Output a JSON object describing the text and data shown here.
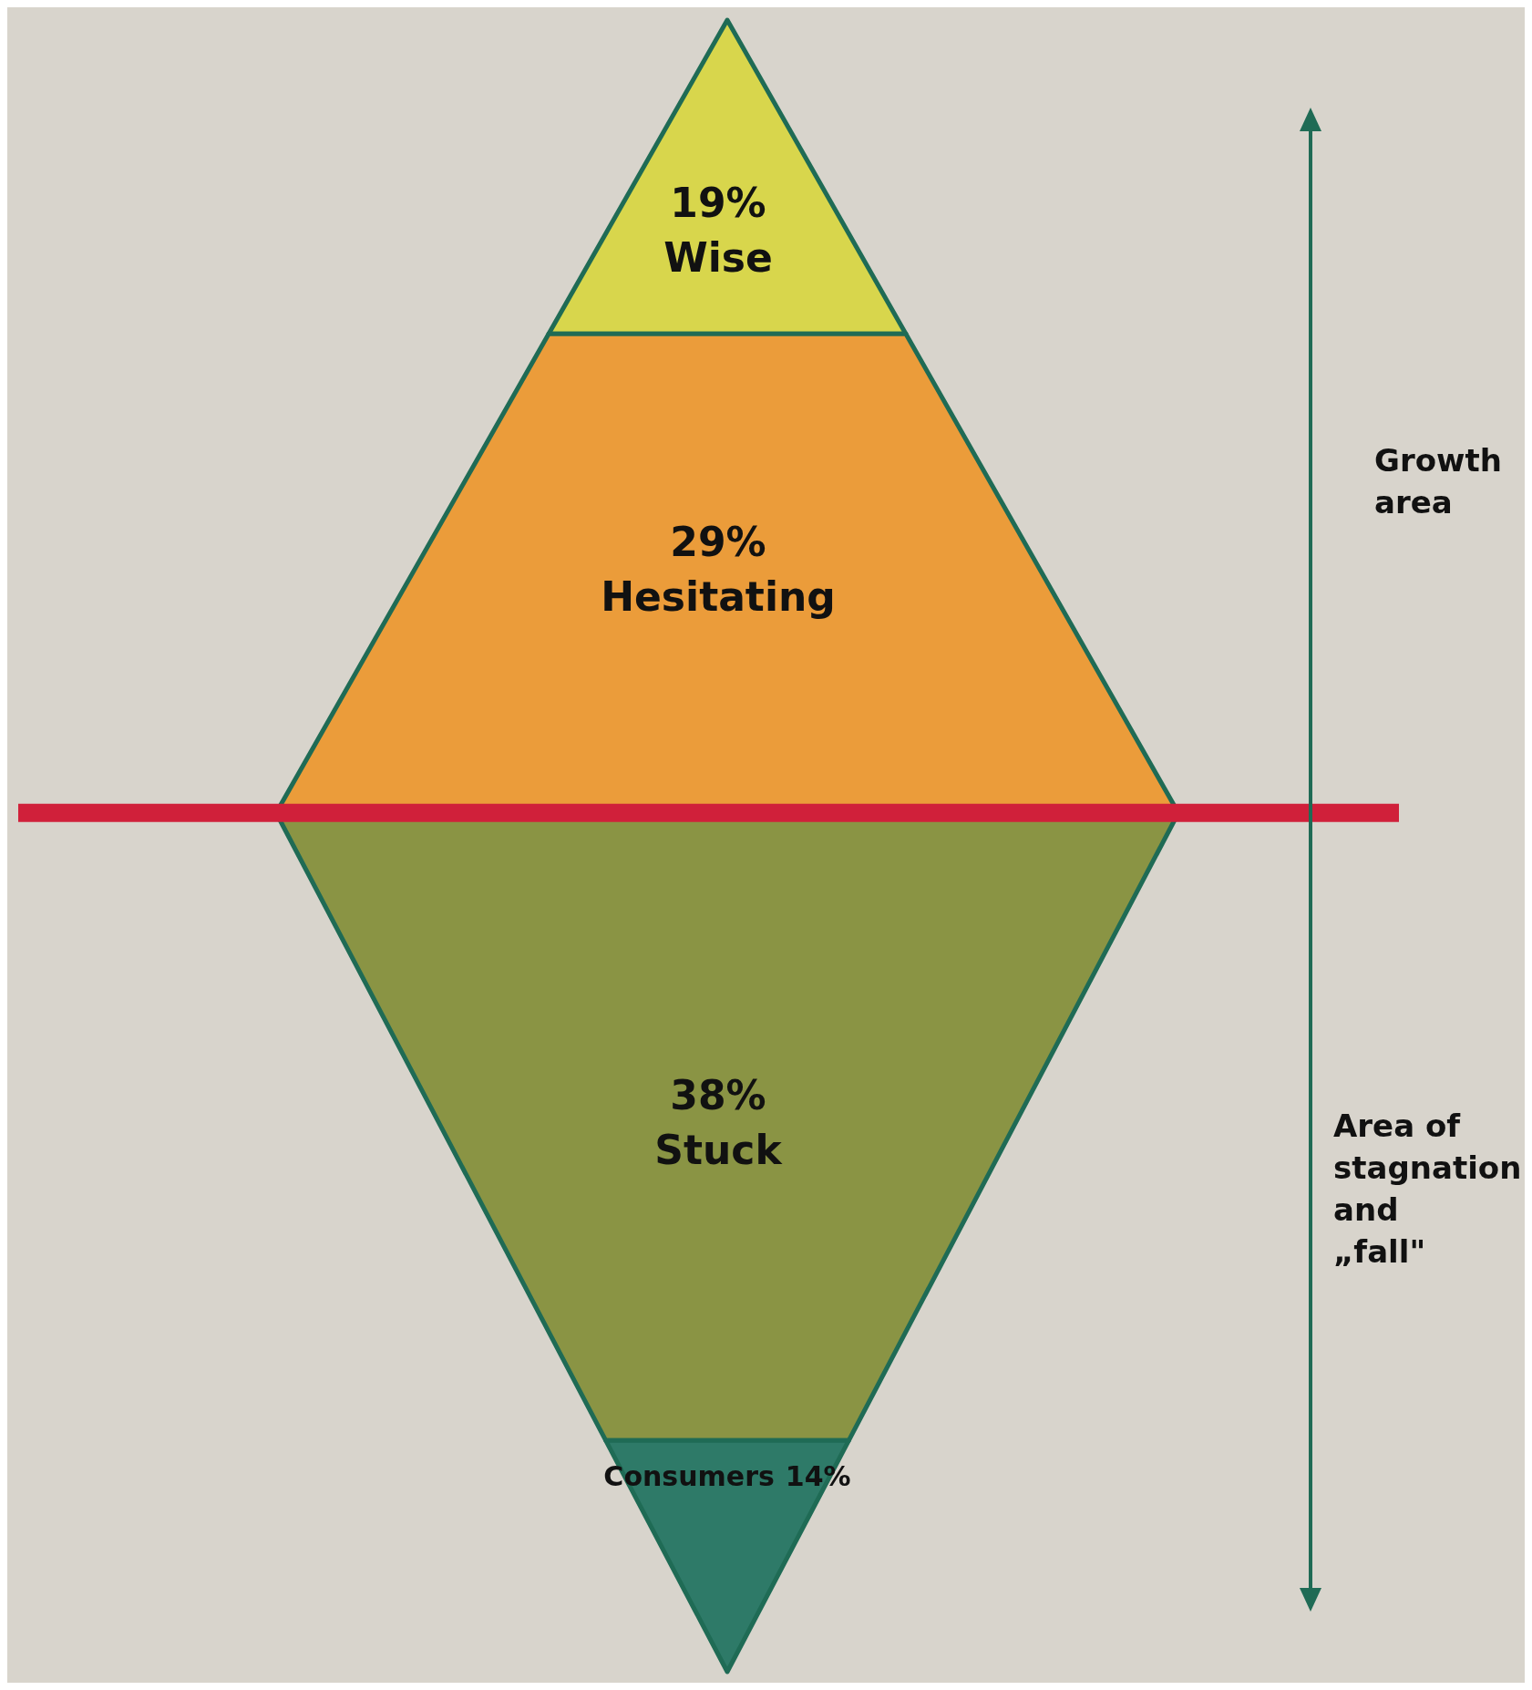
{
  "chart_data": {
    "type": "other",
    "categories": [
      "Wise",
      "Hesitating",
      "Stuck",
      "Consumers"
    ],
    "values": [
      19,
      29,
      38,
      14
    ],
    "value_labels": [
      "19%",
      "29%",
      "38%",
      "14%"
    ],
    "colors": [
      "#d8d64c",
      "#eb9c3a",
      "#8a9444",
      "#2e7a68"
    ],
    "annotations": [
      "Growth area",
      "Area of stagnation and „fall\""
    ]
  }
}
